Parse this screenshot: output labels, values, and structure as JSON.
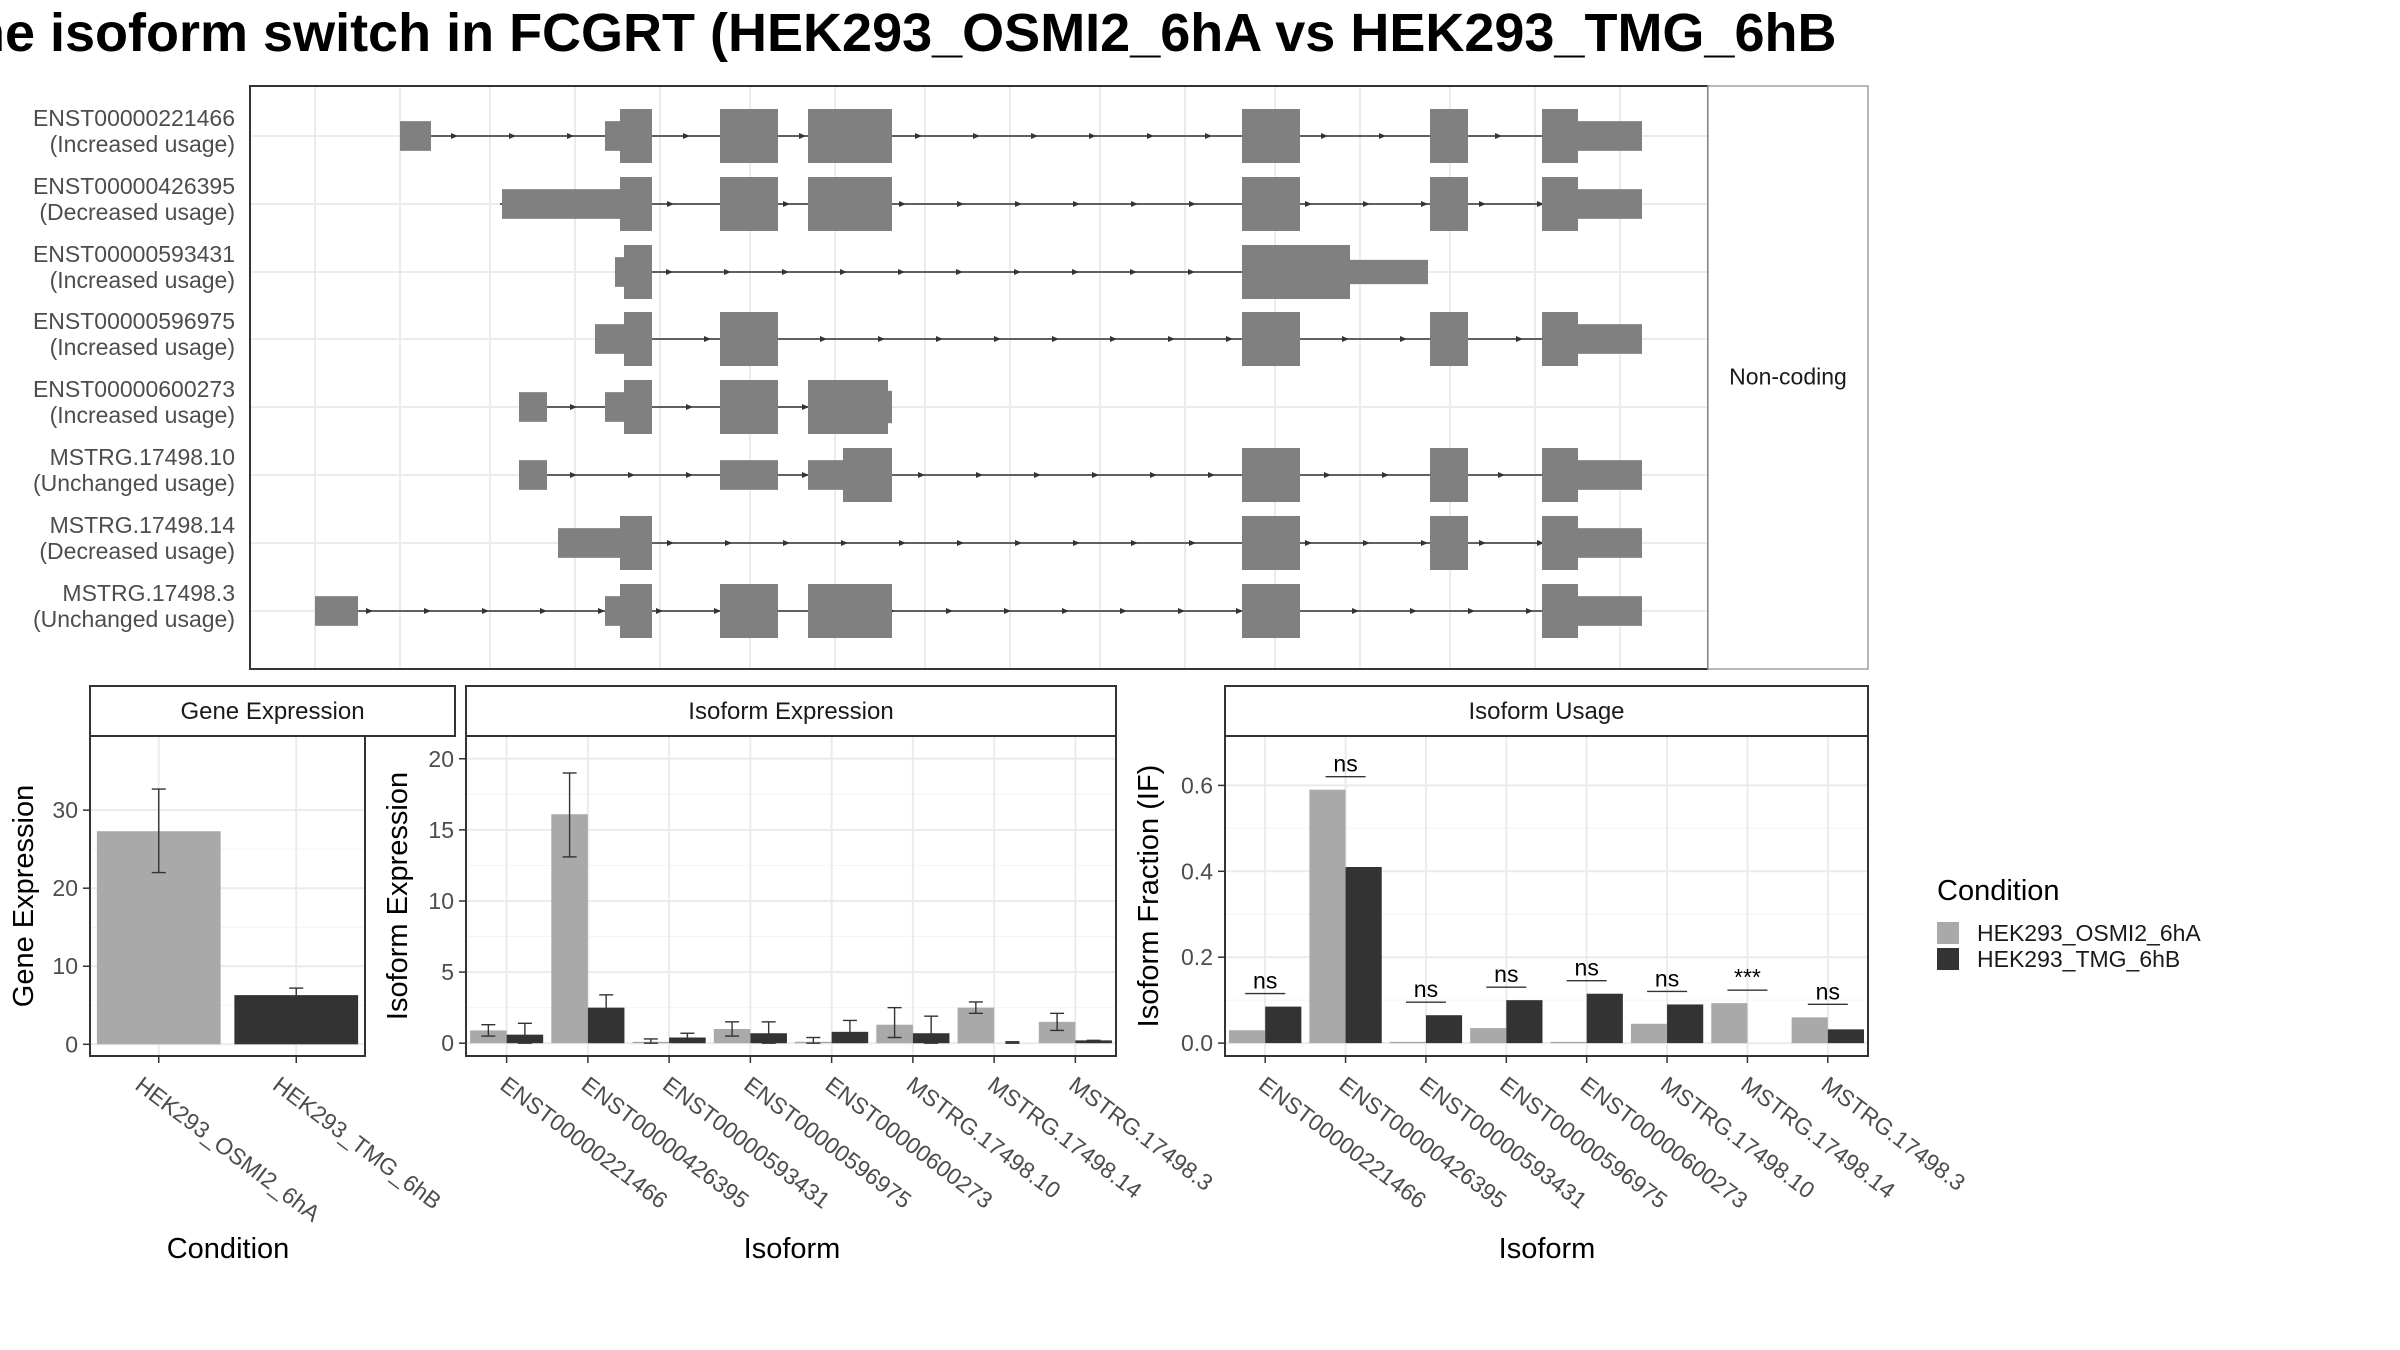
{
  "title": "he isoform switch in FCGRT (HEK293_OSMI2_6hA vs HEK293_TMG_6hB",
  "colors": {
    "condition_a": "#a9a9a9",
    "condition_b": "#333333",
    "exon": "#808080",
    "panel_border": "#333333",
    "grid": "#ebebeb"
  },
  "structure_panel": {
    "facet_label": "Non-coding",
    "transcripts": [
      {
        "id": "ENST00000221466",
        "usage": "(Increased usage)"
      },
      {
        "id": "ENST00000426395",
        "usage": "(Decreased usage)"
      },
      {
        "id": "ENST00000593431",
        "usage": "(Increased usage)"
      },
      {
        "id": "ENST00000596975",
        "usage": "(Increased usage)"
      },
      {
        "id": "ENST00000600273",
        "usage": "(Increased usage)"
      },
      {
        "id": "MSTRG.17498.10",
        "usage": "(Unchanged usage)"
      },
      {
        "id": "MSTRG.17498.14",
        "usage": "(Decreased usage)"
      },
      {
        "id": "MSTRG.17498.3",
        "usage": "(Unchanged usage)"
      }
    ]
  },
  "legend": {
    "title": "Condition",
    "items": [
      "HEK293_OSMI2_6hA",
      "HEK293_TMG_6hB"
    ]
  },
  "chart_data": [
    {
      "type": "bar",
      "title": "Gene Expression",
      "xlabel": "Condition",
      "ylabel": "Gene Expression",
      "categories": [
        "HEK293_OSMI2_6hA",
        "HEK293_TMG_6hB"
      ],
      "values": [
        27.3,
        6.3
      ],
      "errors": [
        [
          22.0,
          32.7
        ],
        [
          5.4,
          7.2
        ]
      ],
      "ylim": [
        -1.5,
        39.5
      ],
      "yticks": [
        0,
        10,
        20,
        30
      ],
      "grid": true
    },
    {
      "type": "bar",
      "title": "Isoform Expression",
      "xlabel": "Isoform",
      "ylabel": "Isoform Expression",
      "categories": [
        "ENST00000221466",
        "ENST00000426395",
        "ENST00000593431",
        "ENST00000596975",
        "ENST00000600273",
        "MSTRG.17498.10",
        "MSTRG.17498.14",
        "MSTRG.17498.3"
      ],
      "series": [
        {
          "name": "HEK293_OSMI2_6hA",
          "values": [
            0.9,
            16.1,
            0.1,
            1.0,
            0.1,
            1.3,
            2.5,
            1.5
          ],
          "errors": [
            [
              0.5,
              1.3
            ],
            [
              13.1,
              19.0
            ],
            [
              0.0,
              0.3
            ],
            [
              0.5,
              1.5
            ],
            [
              0.0,
              0.4
            ],
            [
              0.4,
              2.5
            ],
            [
              2.1,
              2.9
            ],
            [
              0.9,
              2.1
            ]
          ]
        },
        {
          "name": "HEK293_TMG_6hB",
          "values": [
            0.6,
            2.5,
            0.4,
            0.7,
            0.8,
            0.7,
            0.0,
            0.2
          ],
          "errors": [
            [
              0.0,
              1.4
            ],
            [
              1.5,
              3.4
            ],
            [
              0.1,
              0.7
            ],
            [
              0.0,
              1.5
            ],
            [
              0.1,
              1.6
            ],
            [
              0.0,
              1.9
            ],
            [
              0.0,
              0.1
            ],
            [
              0.1,
              0.2
            ]
          ]
        }
      ],
      "ylim": [
        -0.9,
        21.6
      ],
      "yticks": [
        0,
        5,
        10,
        15,
        20
      ],
      "grid": true
    },
    {
      "type": "bar",
      "title": "Isoform Usage",
      "xlabel": "Isoform",
      "ylabel": "Isoform Fraction (IF)",
      "categories": [
        "ENST00000221466",
        "ENST00000426395",
        "ENST00000593431",
        "ENST00000596975",
        "ENST00000600273",
        "MSTRG.17498.10",
        "MSTRG.17498.14",
        "MSTRG.17498.3"
      ],
      "series": [
        {
          "name": "HEK293_OSMI2_6hA",
          "values": [
            0.03,
            0.59,
            0.003,
            0.035,
            0.003,
            0.045,
            0.093,
            0.06
          ]
        },
        {
          "name": "HEK293_TMG_6hB",
          "values": [
            0.085,
            0.41,
            0.065,
            0.1,
            0.115,
            0.09,
            0.0,
            0.032
          ]
        }
      ],
      "significance": [
        "ns",
        "ns",
        "ns",
        "ns",
        "ns",
        "ns",
        "***",
        "ns"
      ],
      "ylim": [
        -0.03,
        0.715
      ],
      "yticks": [
        0.0,
        0.2,
        0.4,
        0.6
      ],
      "ytick_labels": [
        "0.0",
        "0.2",
        "0.4",
        "0.6"
      ],
      "grid": true
    }
  ]
}
